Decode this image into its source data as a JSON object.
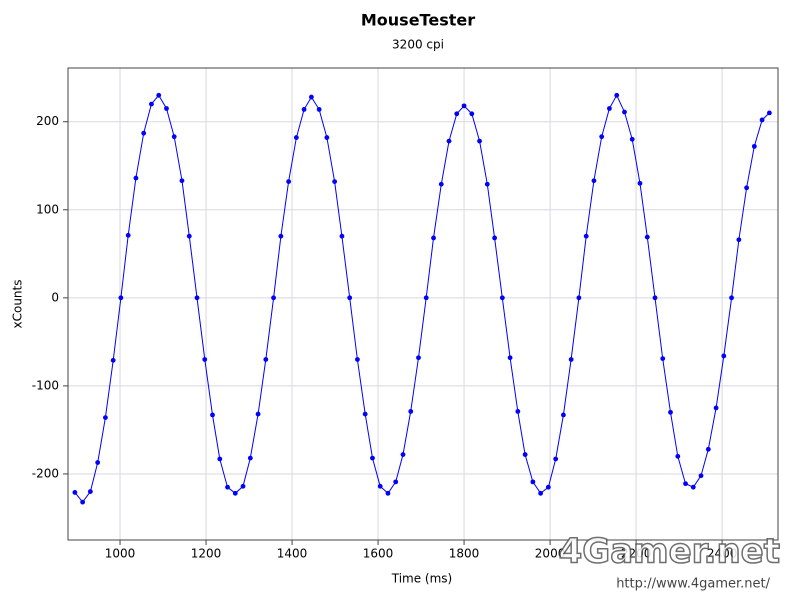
{
  "chart_data": {
    "type": "scatter",
    "title": "MouseTester",
    "subtitle": "3200 cpi",
    "x_label": "Time (ms)",
    "y_label": "xCounts",
    "x": [
      895,
      913,
      931,
      948,
      966,
      984,
      1002,
      1019,
      1037,
      1055,
      1073,
      1090,
      1108,
      1126,
      1144,
      1161,
      1179,
      1197,
      1215,
      1232,
      1250,
      1268,
      1286,
      1303,
      1321,
      1339,
      1357,
      1374,
      1392,
      1410,
      1428,
      1445,
      1463,
      1481,
      1499,
      1516,
      1534,
      1552,
      1570,
      1587,
      1605,
      1623,
      1641,
      1658,
      1676,
      1694,
      1712,
      1729,
      1747,
      1765,
      1783,
      1800,
      1818,
      1836,
      1854,
      1871,
      1889,
      1907,
      1925,
      1942,
      1960,
      1978,
      1996,
      2013,
      2031,
      2049,
      2067,
      2084,
      2102,
      2120,
      2138,
      2155,
      2173,
      2191,
      2209,
      2226,
      2244,
      2262,
      2280,
      2297,
      2315,
      2333,
      2351,
      2368,
      2386,
      2404,
      2422,
      2439,
      2457,
      2475,
      2493,
      2510
    ],
    "values": [
      -221,
      -232,
      -220,
      -187,
      -136,
      -71,
      0,
      71,
      136,
      187,
      220,
      230,
      215,
      183,
      133,
      70,
      0,
      -70,
      -133,
      -183,
      -215,
      -222,
      -214,
      -182,
      -132,
      -70,
      0,
      70,
      132,
      182,
      214,
      228,
      214,
      182,
      132,
      70,
      0,
      -70,
      -132,
      -182,
      -214,
      -222,
      -209,
      -178,
      -129,
      -68,
      0,
      68,
      129,
      178,
      209,
      218,
      209,
      178,
      129,
      68,
      0,
      -68,
      -129,
      -178,
      -209,
      -222,
      -215,
      -183,
      -133,
      -70,
      0,
      70,
      133,
      183,
      215,
      230,
      211,
      180,
      130,
      69,
      0,
      -69,
      -130,
      -180,
      -211,
      -215,
      -202,
      -172,
      -125,
      -66,
      0,
      66,
      125,
      172,
      202,
      210
    ],
    "color": "#0000ff",
    "line": true,
    "xlim": [
      879,
      2530
    ],
    "xticks": [
      1000,
      1200,
      1400,
      1600,
      1800,
      2000,
      2200,
      2400
    ],
    "ylim": [
      -275,
      261
    ],
    "yticks": [
      -200,
      -100,
      0,
      100,
      200
    ],
    "grid": true,
    "watermark": {
      "logo": "4Gamer.net",
      "url": "http://www.4gamer.net/"
    }
  }
}
